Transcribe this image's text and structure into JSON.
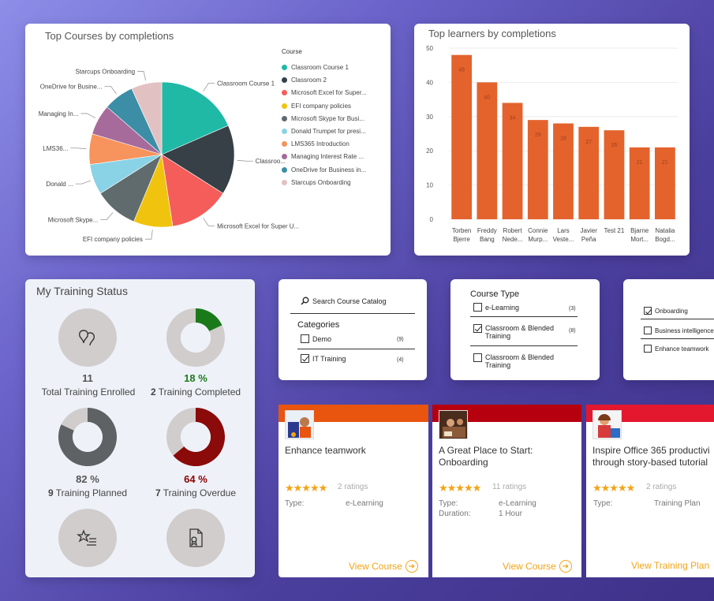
{
  "pie_card": {
    "title": "Top Courses by completions",
    "legend_title": "Course",
    "slice_labels": [
      "Classroom Course 1",
      "Classroo...",
      "Microsoft Excel for Super U...",
      "EFI company policies",
      "Microsoft Skype...",
      "Donald ...",
      "LMS36...",
      "Managing In...",
      "OneDrive for Busine...",
      "Starcups Onboarding"
    ],
    "legend": [
      "Classroom Course 1",
      "Classroom 2",
      "Microsoft Excel for Super...",
      "EFI company policies",
      "Microsoft Skype for Busi...",
      "Donald Trumpet for presi...",
      "LMS365 Introduction",
      "Managing Interest Rate ...",
      "OneDrive for Business in...",
      "Starcups Onboarding"
    ],
    "colors": [
      "#1fb9a6",
      "#364046",
      "#f45d59",
      "#f0c30f",
      "#5f6b6d",
      "#8ad3e6",
      "#f7935c",
      "#a66b9b",
      "#3b8ea5",
      "#e2c1c3"
    ]
  },
  "bar_card": {
    "title": "Top learners by completions"
  },
  "chart_data": [
    {
      "type": "pie",
      "title": "Top Courses by completions",
      "categories": [
        "Classroom Course 1",
        "Classroom 2",
        "Microsoft Excel for Super...",
        "EFI company policies",
        "Microsoft Skype for Busi...",
        "Donald Trumpet for presi...",
        "LMS365 Introduction",
        "Managing Interest Rate ...",
        "OneDrive for Business in...",
        "Starcups Onboarding"
      ],
      "values": [
        19,
        16,
        14,
        9,
        10,
        7,
        7,
        7,
        7,
        7
      ]
    },
    {
      "type": "bar",
      "title": "Top learners by completions",
      "categories": [
        [
          "Torben",
          "Bjerre"
        ],
        [
          "Freddy",
          "Bang"
        ],
        [
          "Robert",
          "Nede..."
        ],
        [
          "Connie",
          "Murp..."
        ],
        [
          "Lars",
          "Veste..."
        ],
        [
          "Javier",
          "Peña"
        ],
        [
          "Test 21",
          ""
        ],
        [
          "Bjarne",
          "Mort..."
        ],
        [
          "Natalia",
          "Bogd..."
        ]
      ],
      "values": [
        48,
        40,
        34,
        29,
        28,
        27,
        26,
        21,
        21
      ],
      "yticks": [
        "0",
        "10",
        "20",
        "30",
        "40",
        "50"
      ],
      "ylim": [
        0,
        50
      ],
      "color": "#e4632d"
    }
  ],
  "status": {
    "title": "My Training Status",
    "enrolled_value": "11",
    "enrolled_label": "Total Training Enrolled",
    "completed_value": "18 %",
    "completed_count": "2",
    "completed_label": "Training Completed",
    "completed_pct": 0.18,
    "planned_value": "82 %",
    "planned_count": "9",
    "planned_label": "Training Planned",
    "planned_pct": 0.82,
    "overdue_value": "64 %",
    "overdue_count": "7",
    "overdue_label": "Training Overdue",
    "overdue_pct": 0.64
  },
  "filter1": {
    "search": "Search Course Catalog",
    "categories_title": "Categories",
    "items": [
      {
        "label": "Demo",
        "count": "(9)",
        "checked": false
      },
      {
        "label": "IT Training",
        "count": "(4)",
        "checked": true
      }
    ]
  },
  "filter2": {
    "title": "Course Type",
    "items": [
      {
        "label": "e-Learning",
        "count": "(3)",
        "checked": false
      },
      {
        "label": "Classroom & Blended Training",
        "count": "(8)",
        "checked": true
      },
      {
        "label": "Classroom & Blended Training",
        "count": "",
        "checked": false
      }
    ]
  },
  "filter3": {
    "items": [
      {
        "label": "Onboarding",
        "checked": true
      },
      {
        "label": "Business intelligence",
        "checked": false
      },
      {
        "label": "Enhance teamwork",
        "checked": false
      }
    ]
  },
  "courses": [
    {
      "title": "Enhance teamwork",
      "stars": "★★★★★",
      "ratings": "2 ratings",
      "type_key": "Type:",
      "type_val": "e-Learning",
      "dur_key": "",
      "dur_val": "",
      "action": "View Course",
      "bar": "#e9540f"
    },
    {
      "title": "A Great Place to Start: Onboarding",
      "stars": "★★★★★",
      "ratings": "11 ratings",
      "type_key": "Type:",
      "type_val": "e-Learning",
      "dur_key": "Duration:",
      "dur_val": "1 Hour",
      "action": "View Course",
      "bar": "#b6000f"
    },
    {
      "title": "Inspire Office 365 productivi through story-based tutorial",
      "stars": "★★★★★",
      "ratings": "2 ratings",
      "type_key": "Type:",
      "type_val": "Training Plan",
      "dur_key": "",
      "dur_val": "",
      "action": "View Training Plan",
      "bar": "#e3182e"
    }
  ]
}
